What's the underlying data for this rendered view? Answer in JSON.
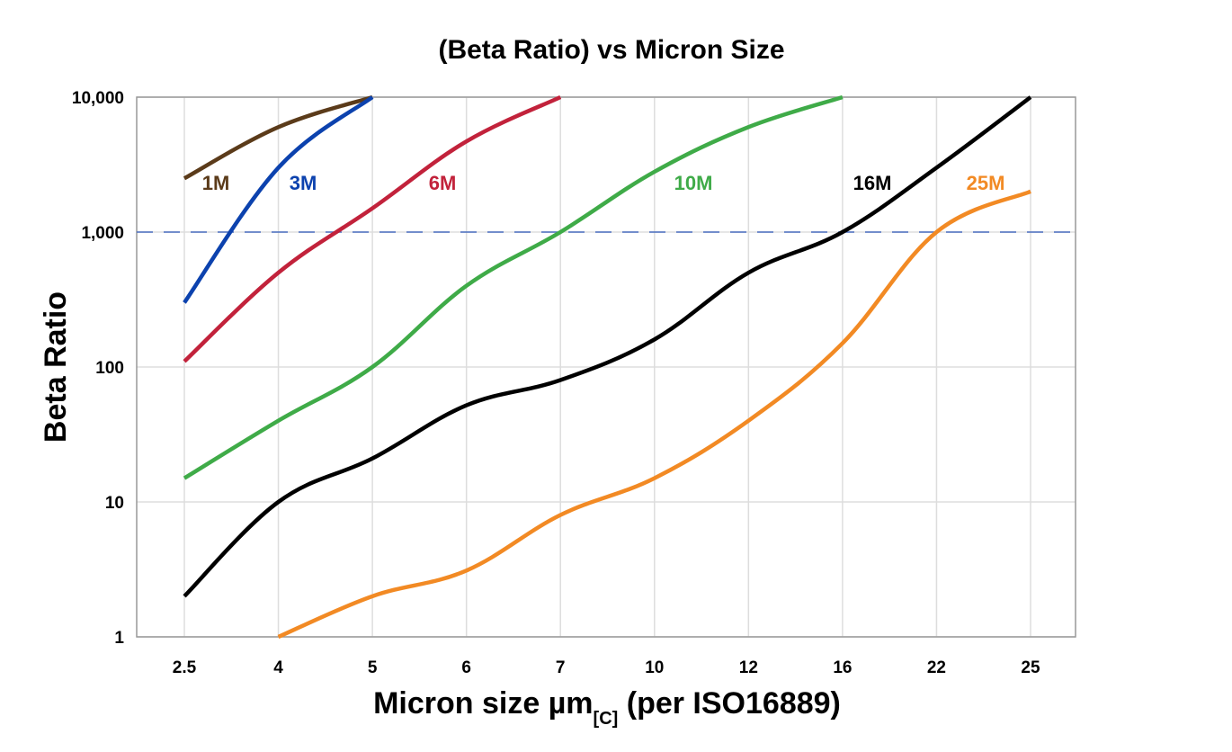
{
  "chart_data": {
    "type": "line",
    "title": "(Beta Ratio) vs Micron Size",
    "xlabel": {
      "main": "Micron size µm",
      "subscript": "[C]",
      "suffix": " (per ISO16889)"
    },
    "ylabel": "Beta Ratio",
    "yscale": "log",
    "ylim": [
      1,
      10000
    ],
    "yticks": [
      1,
      10,
      100,
      1000,
      10000
    ],
    "ytick_labels": [
      "1",
      "10",
      "100",
      "1,000",
      "10,000"
    ],
    "categories": [
      "2.5",
      "4",
      "5",
      "6",
      "7",
      "10",
      "12",
      "16",
      "22",
      "25"
    ],
    "grid": true,
    "reference_line": {
      "y": 1000,
      "style": "dashed",
      "color": "#4a6fc0"
    },
    "series": [
      {
        "name": "1M",
        "color": "#5b3b1a",
        "values": [
          2500,
          6000,
          10000,
          null,
          null,
          null,
          null,
          null,
          null,
          null
        ]
      },
      {
        "name": "3M",
        "color": "#0c42ae",
        "values": [
          300,
          3000,
          10000,
          null,
          null,
          null,
          null,
          null,
          null,
          null
        ]
      },
      {
        "name": "6M",
        "color": "#c2223b",
        "values": [
          110,
          500,
          1500,
          4700,
          10000,
          null,
          null,
          null,
          null,
          null
        ]
      },
      {
        "name": "10M",
        "color": "#3fab48",
        "values": [
          15,
          40,
          100,
          400,
          1000,
          2800,
          6000,
          10000,
          null,
          null
        ]
      },
      {
        "name": "16M",
        "color": "#000000",
        "values": [
          2,
          10,
          21,
          52,
          80,
          160,
          500,
          1000,
          3000,
          10000
        ]
      },
      {
        "name": "25M",
        "color": "#f28a24",
        "values": [
          null,
          1,
          2,
          3.1,
          8,
          15,
          40,
          150,
          1000,
          2000
        ]
      }
    ]
  }
}
